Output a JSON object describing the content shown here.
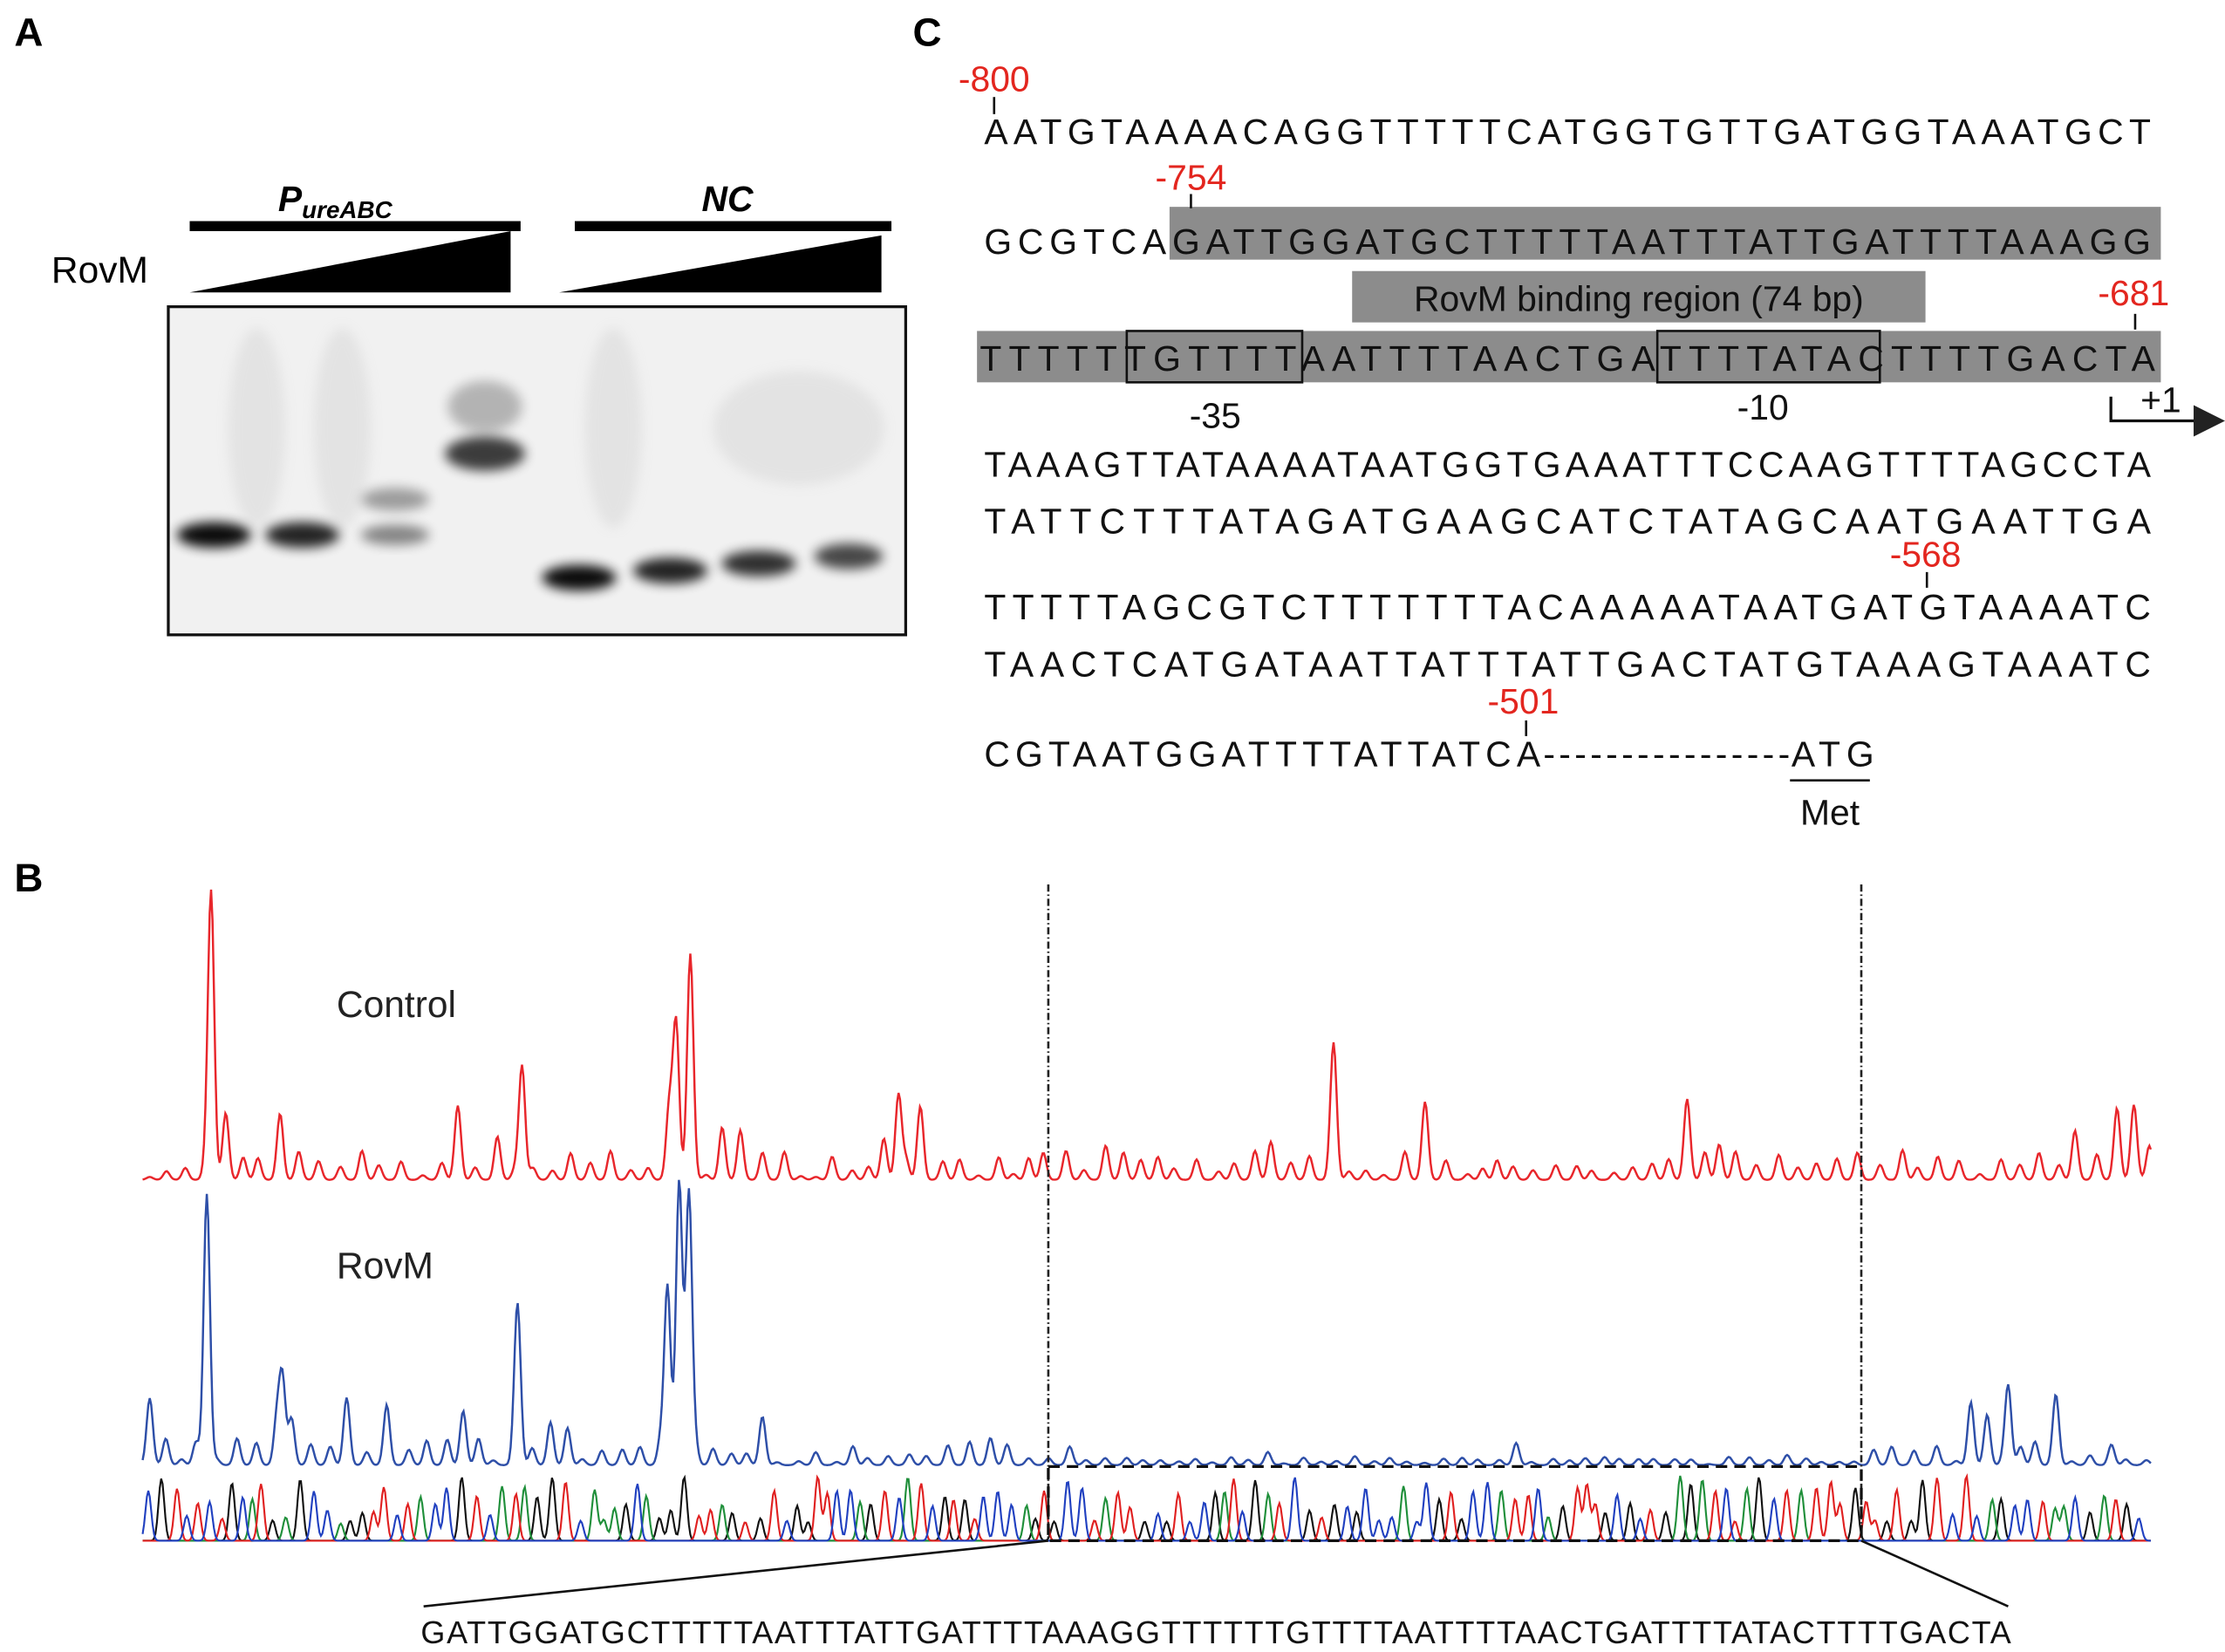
{
  "panel_labels": {
    "a": "A",
    "b": "B",
    "c": "C"
  },
  "panel_a": {
    "probe_1": {
      "main": "P",
      "sub": "ureABC"
    },
    "probe_2": "NC",
    "protein": "RovM"
  },
  "panel_b": {
    "trace_1": "Control",
    "trace_2": "RovM",
    "sequence": "GATTGGATGCTTTTTAATTTATTGATTTTAAAGGTTTTTTGTTTTAATTTTAACTGATTTTATACTTTTGACTA"
  },
  "panel_c": {
    "lines": [
      "AATGTAAAACAGGTTTTTCATGGTGTTGATGGTAAATGCT",
      "GCGTCAGATTGGATGCTTTTTAATTTATTGATTTTAAAGG",
      "TTTTTTGTTTTAATTTTAACTGATTTTATACTTTTGACTA",
      "TAAAGTTATAAAATAATGGTGAAATTTCCAAGTTTTAGCCTA",
      "TATTCTTTATAGATGAAGCATCTATAGCAATGAATTGA",
      "TTTTTAGCGTCTTTTTTTACAAAAATAATGATGTAAAATC",
      "TAACTCATGATAATTATTTATTGACTATGTAAAGTAAATC",
      "CGTAATGGATTTTATTATCA"
    ],
    "positions": [
      "-800",
      "-754",
      "-681",
      "-568",
      "-501"
    ],
    "binding_region": "RovM binding region (74 bp)",
    "minus_35": "-35",
    "minus_10": "-10",
    "tss": "+1",
    "spacer": "----------------",
    "start_codon": "ATG",
    "amino_acid": "Met"
  }
}
